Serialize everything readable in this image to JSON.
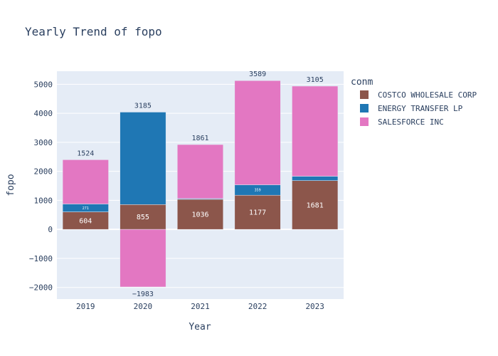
{
  "chart_data": {
    "type": "bar",
    "barmode": "relative",
    "title": "Yearly Trend of fopo",
    "xlabel": "Year",
    "ylabel": "fopo",
    "categories": [
      "2019",
      "2020",
      "2021",
      "2022",
      "2023"
    ],
    "ylim": [
      -2400,
      5450
    ],
    "yticks": [
      -2000,
      -1000,
      0,
      1000,
      2000,
      3000,
      4000,
      5000
    ],
    "ytick_labels": [
      "−2000",
      "−1000",
      "0",
      "1000",
      "2000",
      "3000",
      "4000",
      "5000"
    ],
    "grid": true,
    "legend": {
      "title": "conm",
      "placement": "right"
    },
    "series": [
      {
        "name": "COSTCO WHOLESALE CORP",
        "color": "#8c564b",
        "values": [
          604,
          855,
          1036,
          1177,
          1681
        ]
      },
      {
        "name": "ENERGY TRANSFER LP",
        "color": "#1f77b4",
        "values": [
          271,
          3185,
          25,
          359,
          150
        ]
      },
      {
        "name": "SALESFORCE INC",
        "color": "#e377c2",
        "values": [
          1524,
          -1983,
          1861,
          3589,
          3105
        ]
      }
    ],
    "data_labels": [
      [
        "604",
        "855",
        "1036",
        "1177",
        "1681"
      ],
      [
        "271",
        "3185",
        "",
        "359",
        ""
      ],
      [
        "1524",
        "−1983",
        "1861",
        "3589",
        "3105"
      ]
    ],
    "label_positions": [
      [
        "inside",
        "inside",
        "inside",
        "inside",
        "inside"
      ],
      [
        "inside",
        "outside",
        "none",
        "inside",
        "none"
      ],
      [
        "outside",
        "outside",
        "outside",
        "outside",
        "outside"
      ]
    ]
  }
}
